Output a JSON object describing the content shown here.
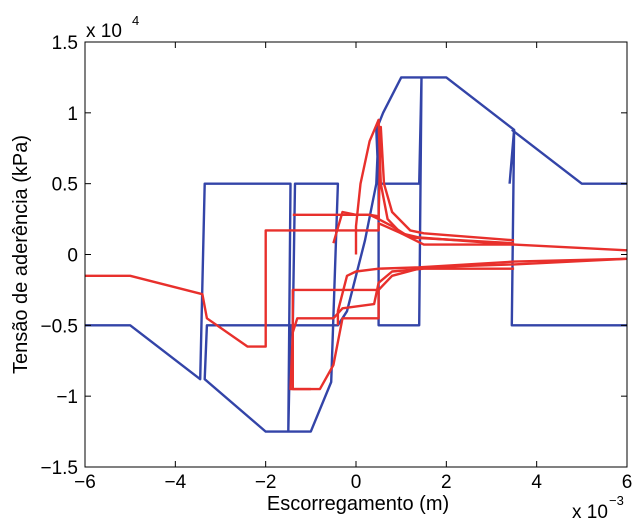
{
  "chart_data": {
    "type": "line",
    "title": "",
    "xlabel": "Escorregamento (m)",
    "ylabel": "Tensão de aderência (kPa)",
    "x_multiplier": {
      "base": "x 10",
      "exponent": "−3"
    },
    "y_multiplier": {
      "base": "x 10",
      "exponent": "4"
    },
    "xlim": [
      -6,
      6
    ],
    "ylim": [
      -1.5,
      1.5
    ],
    "x_ticks": [
      -6,
      -4,
      -2,
      0,
      2,
      4,
      6
    ],
    "x_tick_labels": [
      "−6",
      "−4",
      "−2",
      "0",
      "2",
      "4",
      "6"
    ],
    "y_ticks": [
      1.5,
      1,
      0.5,
      0,
      -0.5,
      -1,
      -1.5
    ],
    "y_tick_labels": [
      "1.5",
      "1",
      "0.5",
      "0",
      "−0.5",
      "−1",
      "−1.5"
    ],
    "grid": false,
    "colors": {
      "blue": "#3344a8",
      "red": "#e8302c"
    },
    "series": [
      {
        "color": "blue",
        "points": [
          [
            -6,
            -0.5
          ],
          [
            -5,
            -0.5
          ],
          [
            -3.45,
            -0.88
          ],
          [
            -3.35,
            0.5
          ],
          [
            -1.45,
            0.5
          ],
          [
            -1.5,
            -1.25
          ],
          [
            -2,
            -1.25
          ],
          [
            -3.35,
            -0.88
          ],
          [
            -3.3,
            -0.5
          ],
          [
            -1.4,
            -0.5
          ],
          [
            -1.35,
            0.5
          ],
          [
            -0.4,
            0.5
          ],
          [
            -0.55,
            -0.9
          ],
          [
            -1,
            -1.25
          ],
          [
            -1.5,
            -1.25
          ],
          [
            -1.45,
            -0.5
          ],
          [
            -0.4,
            -0.5
          ],
          [
            -0.2,
            -0.4
          ],
          [
            0.2,
            0.1
          ],
          [
            0.45,
            0.5
          ],
          [
            0.5,
            0.88
          ],
          [
            0.5,
            -0.5
          ],
          [
            1.4,
            -0.5
          ],
          [
            1.45,
            1.25
          ],
          [
            1,
            1.25
          ],
          [
            0.6,
            1.0
          ],
          [
            0.45,
            0.88
          ],
          [
            0.5,
            0.5
          ],
          [
            1.4,
            0.5
          ],
          [
            1.45,
            1.25
          ],
          [
            2,
            1.25
          ],
          [
            3.5,
            0.88
          ],
          [
            3.45,
            -0.5
          ],
          [
            6,
            -0.5
          ]
        ]
      },
      {
        "color": "blue",
        "points": [
          [
            3.4,
            0.5
          ],
          [
            3.5,
            0.88
          ]
        ]
      },
      {
        "color": "blue",
        "points": [
          [
            3.45,
            0.88
          ],
          [
            5,
            0.5
          ],
          [
            6,
            0.5
          ]
        ]
      },
      {
        "color": "red",
        "points": [
          [
            -6,
            -0.15
          ],
          [
            -5,
            -0.15
          ],
          [
            -3.4,
            -0.28
          ],
          [
            -3.3,
            -0.45
          ],
          [
            -2.4,
            -0.65
          ],
          [
            -2,
            -0.65
          ],
          [
            -2,
            0.17
          ],
          [
            -0.5,
            0.17
          ],
          [
            0.5,
            0.17
          ],
          [
            0.5,
            0.22
          ],
          [
            1.0,
            0.15
          ],
          [
            1.5,
            0.07
          ],
          [
            3.5,
            0.07
          ],
          [
            6,
            0.03
          ]
        ]
      },
      {
        "color": "red",
        "points": [
          [
            6,
            -0.03
          ],
          [
            3.5,
            -0.07
          ],
          [
            1.5,
            -0.09
          ],
          [
            0.8,
            -0.15
          ],
          [
            0.5,
            -0.25
          ],
          [
            0.5,
            -0.45
          ],
          [
            -0.3,
            -0.45
          ],
          [
            -0.5,
            -0.78
          ],
          [
            -0.8,
            -0.95
          ],
          [
            -1.0,
            -0.95
          ],
          [
            -1.4,
            -0.95
          ],
          [
            -1.4,
            -0.25
          ],
          [
            -0.5,
            -0.25
          ],
          [
            0,
            -0.25
          ],
          [
            0.5,
            -0.25
          ]
        ]
      },
      {
        "color": "red",
        "points": [
          [
            -1.4,
            0.28
          ],
          [
            -0.5,
            0.28
          ],
          [
            0.3,
            0.28
          ],
          [
            0.5,
            0.27
          ],
          [
            0.5,
            0.25
          ],
          [
            0.8,
            0.2
          ],
          [
            1.2,
            0.12
          ],
          [
            3.5,
            0.08
          ]
        ]
      },
      {
        "color": "red",
        "points": [
          [
            3.5,
            -0.1
          ],
          [
            1.5,
            -0.1
          ],
          [
            0.8,
            -0.12
          ],
          [
            0.5,
            -0.2
          ],
          [
            0.4,
            -0.35
          ],
          [
            -0.3,
            -0.38
          ],
          [
            -0.5,
            -0.45
          ],
          [
            -1.3,
            -0.45
          ],
          [
            -1.4,
            -0.55
          ],
          [
            -1.45,
            -0.95
          ],
          [
            -1.0,
            -0.95
          ]
        ]
      },
      {
        "color": "red",
        "points": [
          [
            0,
            0
          ],
          [
            0,
            0.2
          ],
          [
            0.1,
            0.5
          ],
          [
            0.3,
            0.8
          ],
          [
            0.5,
            0.95
          ],
          [
            0.55,
            0.5
          ],
          [
            0.7,
            0.25
          ],
          [
            1.0,
            0.15
          ],
          [
            1.4,
            0.12
          ],
          [
            3.5,
            0.07
          ]
        ]
      },
      {
        "color": "red",
        "points": [
          [
            -0.5,
            0.08
          ],
          [
            -0.3,
            0.3
          ],
          [
            0,
            0.28
          ],
          [
            0.3,
            0.28
          ],
          [
            0.5,
            0.25
          ],
          [
            0.55,
            0.9
          ],
          [
            0.62,
            0.5
          ],
          [
            0.8,
            0.3
          ],
          [
            1.2,
            0.17
          ],
          [
            1.5,
            0.15
          ],
          [
            3.5,
            0.1
          ]
        ]
      },
      {
        "color": "red",
        "points": [
          [
            -0.4,
            -0.5
          ],
          [
            -0.4,
            -0.4
          ],
          [
            -0.2,
            -0.15
          ],
          [
            0,
            -0.12
          ],
          [
            0.5,
            -0.1
          ],
          [
            1.4,
            -0.09
          ],
          [
            3.5,
            -0.05
          ],
          [
            6,
            -0.03
          ]
        ]
      }
    ]
  }
}
